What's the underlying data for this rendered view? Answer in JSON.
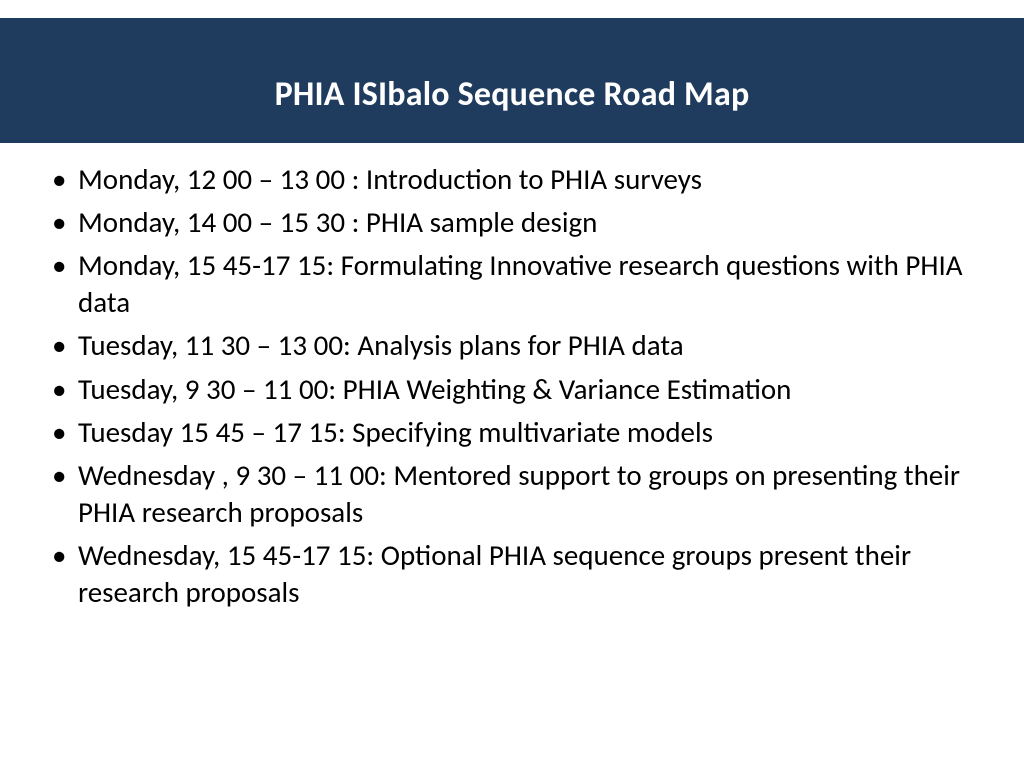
{
  "slide": {
    "title": "PHIA  ISIbalo Sequence Road Map",
    "title_bg_color": "#1f3c5f",
    "title_text_color": "#ffffff",
    "title_fontsize": 34,
    "body_fontsize": 29,
    "body_text_color": "#000000",
    "background_color": "#ffffff",
    "bullets": [
      "Monday, 12 00 – 13 00   : Introduction to  PHIA  surveys",
      "Monday, 14 00 – 15 30 : PHIA  sample design",
      "Monday, 15 45-17 15:  Formulating Innovative research questions with PHIA data",
      "Tuesday, 11 30 – 13 00: Analysis plans for PHIA data",
      "Tuesday, 9 30 – 11 00: PHIA Weighting & Variance Estimation",
      "Tuesday 15 45 – 17 15:  Specifying multivariate models",
      "Wednesday , 9 30 – 11 00:   Mentored support to  groups on presenting  their  PHIA research proposals",
      "Wednesday, 15 45-17 15: Optional PHIA sequence groups present their research proposals"
    ]
  }
}
